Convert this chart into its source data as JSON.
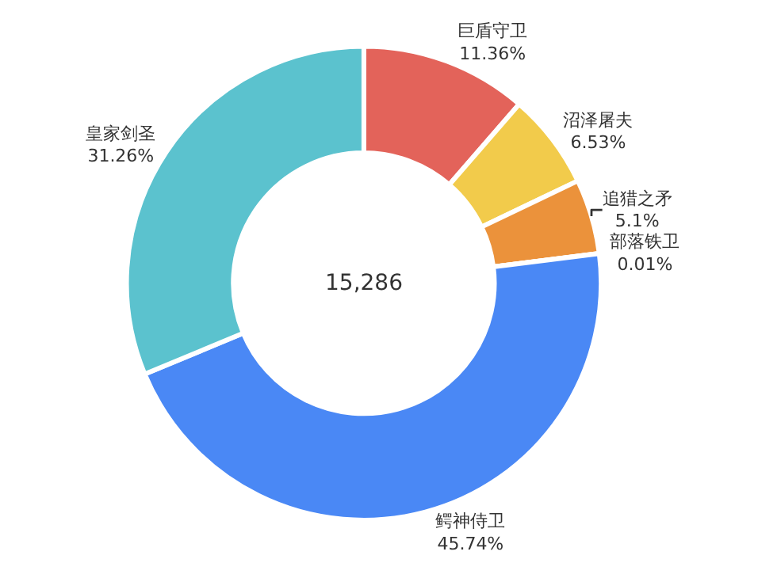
{
  "chart_data": {
    "type": "donut",
    "categories": [
      "巨盾守卫",
      "沼泽屠夫",
      "追猎之矛",
      "部落铁卫",
      "鳄神侍卫",
      "皇家剑圣"
    ],
    "values": [
      11.36,
      6.53,
      5.1,
      0.01,
      45.74,
      31.26
    ],
    "value_labels": [
      "11.36%",
      "6.53%",
      "5.1%",
      "0.01%",
      "45.74%",
      "31.26%"
    ],
    "colors": [
      "#e3635a",
      "#f2cb4b",
      "#eb923b",
      "#8a7be6",
      "#4a88f5",
      "#5bc2ce"
    ],
    "annotations": [
      "15,286"
    ],
    "legend": false
  }
}
